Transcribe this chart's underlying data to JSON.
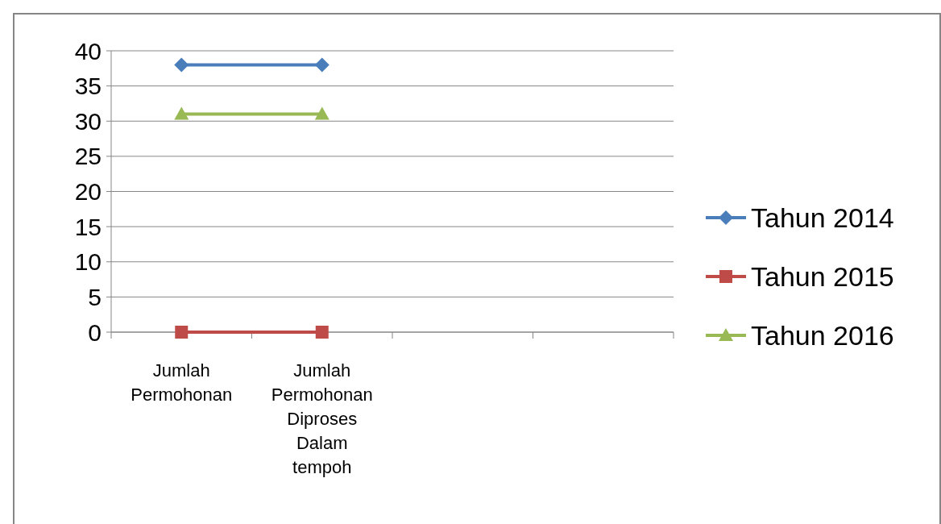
{
  "chart_data": {
    "type": "line",
    "categories": [
      "Jumlah Permohonan",
      "Jumlah Permohonan Diproses Dalam tempoh",
      null,
      null
    ],
    "series": [
      {
        "name": "Tahun 2014",
        "color": "#4a7ebb",
        "marker": "diamond",
        "values": [
          38,
          38,
          null,
          null
        ]
      },
      {
        "name": "Tahun 2015",
        "color": "#be4b48",
        "marker": "square",
        "values": [
          0,
          0,
          null,
          null
        ]
      },
      {
        "name": "Tahun 2016",
        "color": "#98b954",
        "marker": "triangle",
        "values": [
          31,
          31,
          null,
          null
        ]
      }
    ],
    "ylim": [
      0,
      40
    ],
    "yticks": [
      0,
      5,
      10,
      15,
      20,
      25,
      30,
      35,
      40
    ],
    "grid": "y",
    "legend": "right"
  }
}
